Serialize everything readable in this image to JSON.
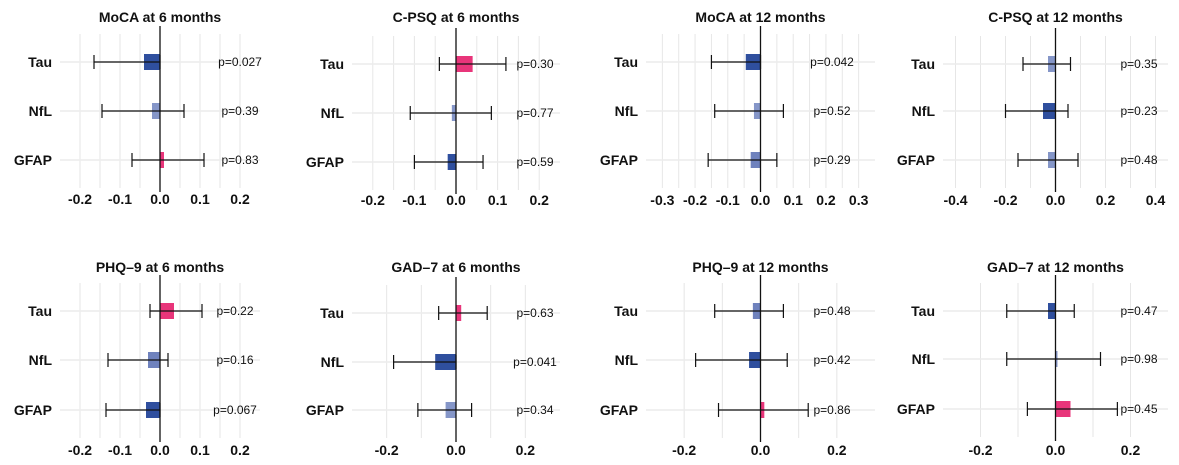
{
  "chart_data": [
    {
      "type": "forest",
      "title": "MoCA at 6 months",
      "categories": [
        "Tau",
        "NfL",
        "GFAP"
      ],
      "ticks": [
        "-0.2",
        "-0.1",
        "0.0",
        "0.1",
        "0.2"
      ],
      "xlim": [
        -0.25,
        0.25
      ],
      "rows": [
        {
          "label": "Tau",
          "estimate": -0.04,
          "ci_low": -0.165,
          "ci_high": 0.0,
          "p": "p=0.027",
          "color": "#2f4f9e"
        },
        {
          "label": "NfL",
          "estimate": -0.02,
          "ci_low": -0.145,
          "ci_high": 0.06,
          "p": "p=0.39",
          "color": "#8596c8"
        },
        {
          "label": "GFAP",
          "estimate": 0.01,
          "ci_low": -0.07,
          "ci_high": 0.11,
          "p": "p=0.83",
          "color": "#e8357a"
        }
      ]
    },
    {
      "type": "forest",
      "title": "C-PSQ at 6 months",
      "categories": [
        "Tau",
        "NfL",
        "GFAP"
      ],
      "ticks": [
        "-0.2",
        "-0.1",
        "0.0",
        "0.1",
        "0.2"
      ],
      "xlim": [
        -0.25,
        0.25
      ],
      "rows": [
        {
          "label": "Tau",
          "estimate": 0.04,
          "ci_low": -0.04,
          "ci_high": 0.12,
          "p": "p=0.30",
          "color": "#e8357a"
        },
        {
          "label": "NfL",
          "estimate": -0.01,
          "ci_low": -0.11,
          "ci_high": 0.085,
          "p": "p=0.77",
          "color": "#8596c8"
        },
        {
          "label": "GFAP",
          "estimate": -0.02,
          "ci_low": -0.1,
          "ci_high": 0.065,
          "p": "p=0.59",
          "color": "#2f4f9e"
        }
      ]
    },
    {
      "type": "forest",
      "title": "MoCA at 12 months",
      "categories": [
        "Tau",
        "NfL",
        "GFAP"
      ],
      "ticks": [
        "-0.3",
        "-0.2",
        "-0.1",
        "0.0",
        "0.1",
        "0.2",
        "0.3"
      ],
      "xlim": [
        -0.35,
        0.35
      ],
      "rows": [
        {
          "label": "Tau",
          "estimate": -0.045,
          "ci_low": -0.15,
          "ci_high": 0.0,
          "p": "p=0.042",
          "color": "#2f4f9e"
        },
        {
          "label": "NfL",
          "estimate": -0.02,
          "ci_low": -0.14,
          "ci_high": 0.07,
          "p": "p=0.52",
          "color": "#8596c8"
        },
        {
          "label": "GFAP",
          "estimate": -0.03,
          "ci_low": -0.16,
          "ci_high": 0.05,
          "p": "p=0.29",
          "color": "#6f82bd"
        }
      ]
    },
    {
      "type": "forest",
      "title": "C-PSQ at 12 months",
      "categories": [
        "Tau",
        "NfL",
        "GFAP"
      ],
      "ticks": [
        "-0.4",
        "-0.2",
        "0.0",
        "0.2",
        "0.4"
      ],
      "xlim": [
        -0.45,
        0.45
      ],
      "rows": [
        {
          "label": "Tau",
          "estimate": -0.03,
          "ci_low": -0.13,
          "ci_high": 0.06,
          "p": "p=0.35",
          "color": "#8596c8"
        },
        {
          "label": "NfL",
          "estimate": -0.05,
          "ci_low": -0.2,
          "ci_high": 0.05,
          "p": "p=0.23",
          "color": "#2f4f9e"
        },
        {
          "label": "GFAP",
          "estimate": -0.03,
          "ci_low": -0.15,
          "ci_high": 0.09,
          "p": "p=0.48",
          "color": "#8596c8"
        }
      ]
    },
    {
      "type": "forest",
      "title": "PHQ–9 at 6 months",
      "categories": [
        "Tau",
        "NfL",
        "GFAP"
      ],
      "ticks": [
        "-0.2",
        "-0.1",
        "0.0",
        "0.1",
        "0.2"
      ],
      "xlim": [
        -0.25,
        0.25
      ],
      "rows": [
        {
          "label": "Tau",
          "estimate": 0.035,
          "ci_low": -0.025,
          "ci_high": 0.105,
          "p": "p=0.22",
          "color": "#e8357a"
        },
        {
          "label": "NfL",
          "estimate": -0.03,
          "ci_low": -0.13,
          "ci_high": 0.02,
          "p": "p=0.16",
          "color": "#6f82bd"
        },
        {
          "label": "GFAP",
          "estimate": -0.035,
          "ci_low": -0.135,
          "ci_high": 0.0,
          "p": "p=0.067",
          "color": "#2f4f9e"
        }
      ]
    },
    {
      "type": "forest",
      "title": "GAD–7 at 6 months",
      "categories": [
        "Tau",
        "NfL",
        "GFAP"
      ],
      "ticks": [
        "-0.2",
        "0.0",
        "0.2"
      ],
      "xlim": [
        -0.3,
        0.3
      ],
      "rows": [
        {
          "label": "Tau",
          "estimate": 0.015,
          "ci_low": -0.05,
          "ci_high": 0.09,
          "p": "p=0.63",
          "color": "#e8357a"
        },
        {
          "label": "NfL",
          "estimate": -0.06,
          "ci_low": -0.18,
          "ci_high": 0.0,
          "p": "p=0.041",
          "color": "#2f4f9e"
        },
        {
          "label": "GFAP",
          "estimate": -0.03,
          "ci_low": -0.11,
          "ci_high": 0.045,
          "p": "p=0.34",
          "color": "#8596c8"
        }
      ]
    },
    {
      "type": "forest",
      "title": "PHQ–9 at 12 months",
      "categories": [
        "Tau",
        "NfL",
        "GFAP"
      ],
      "ticks": [
        "-0.2",
        "0.0",
        "0.2"
      ],
      "xlim": [
        -0.3,
        0.3
      ],
      "rows": [
        {
          "label": "Tau",
          "estimate": -0.02,
          "ci_low": -0.12,
          "ci_high": 0.06,
          "p": "p=0.48",
          "color": "#6f82bd"
        },
        {
          "label": "NfL",
          "estimate": -0.03,
          "ci_low": -0.17,
          "ci_high": 0.07,
          "p": "p=0.42",
          "color": "#2f4f9e"
        },
        {
          "label": "GFAP",
          "estimate": 0.01,
          "ci_low": -0.11,
          "ci_high": 0.125,
          "p": "p=0.86",
          "color": "#e8357a"
        }
      ]
    },
    {
      "type": "forest",
      "title": "GAD–7 at 12 months",
      "categories": [
        "Tau",
        "NfL",
        "GFAP"
      ],
      "ticks": [
        "-0.2",
        "0.0",
        "0.2"
      ],
      "xlim": [
        -0.3,
        0.3
      ],
      "rows": [
        {
          "label": "Tau",
          "estimate": -0.02,
          "ci_low": -0.13,
          "ci_high": 0.05,
          "p": "p=0.47",
          "color": "#2f4f9e"
        },
        {
          "label": "NfL",
          "estimate": 0.0,
          "ci_low": -0.13,
          "ci_high": 0.12,
          "p": "p=0.98",
          "color": "#8596c8"
        },
        {
          "label": "GFAP",
          "estimate": 0.04,
          "ci_low": -0.075,
          "ci_high": 0.165,
          "p": "p=0.45",
          "color": "#e8357a"
        }
      ]
    }
  ]
}
